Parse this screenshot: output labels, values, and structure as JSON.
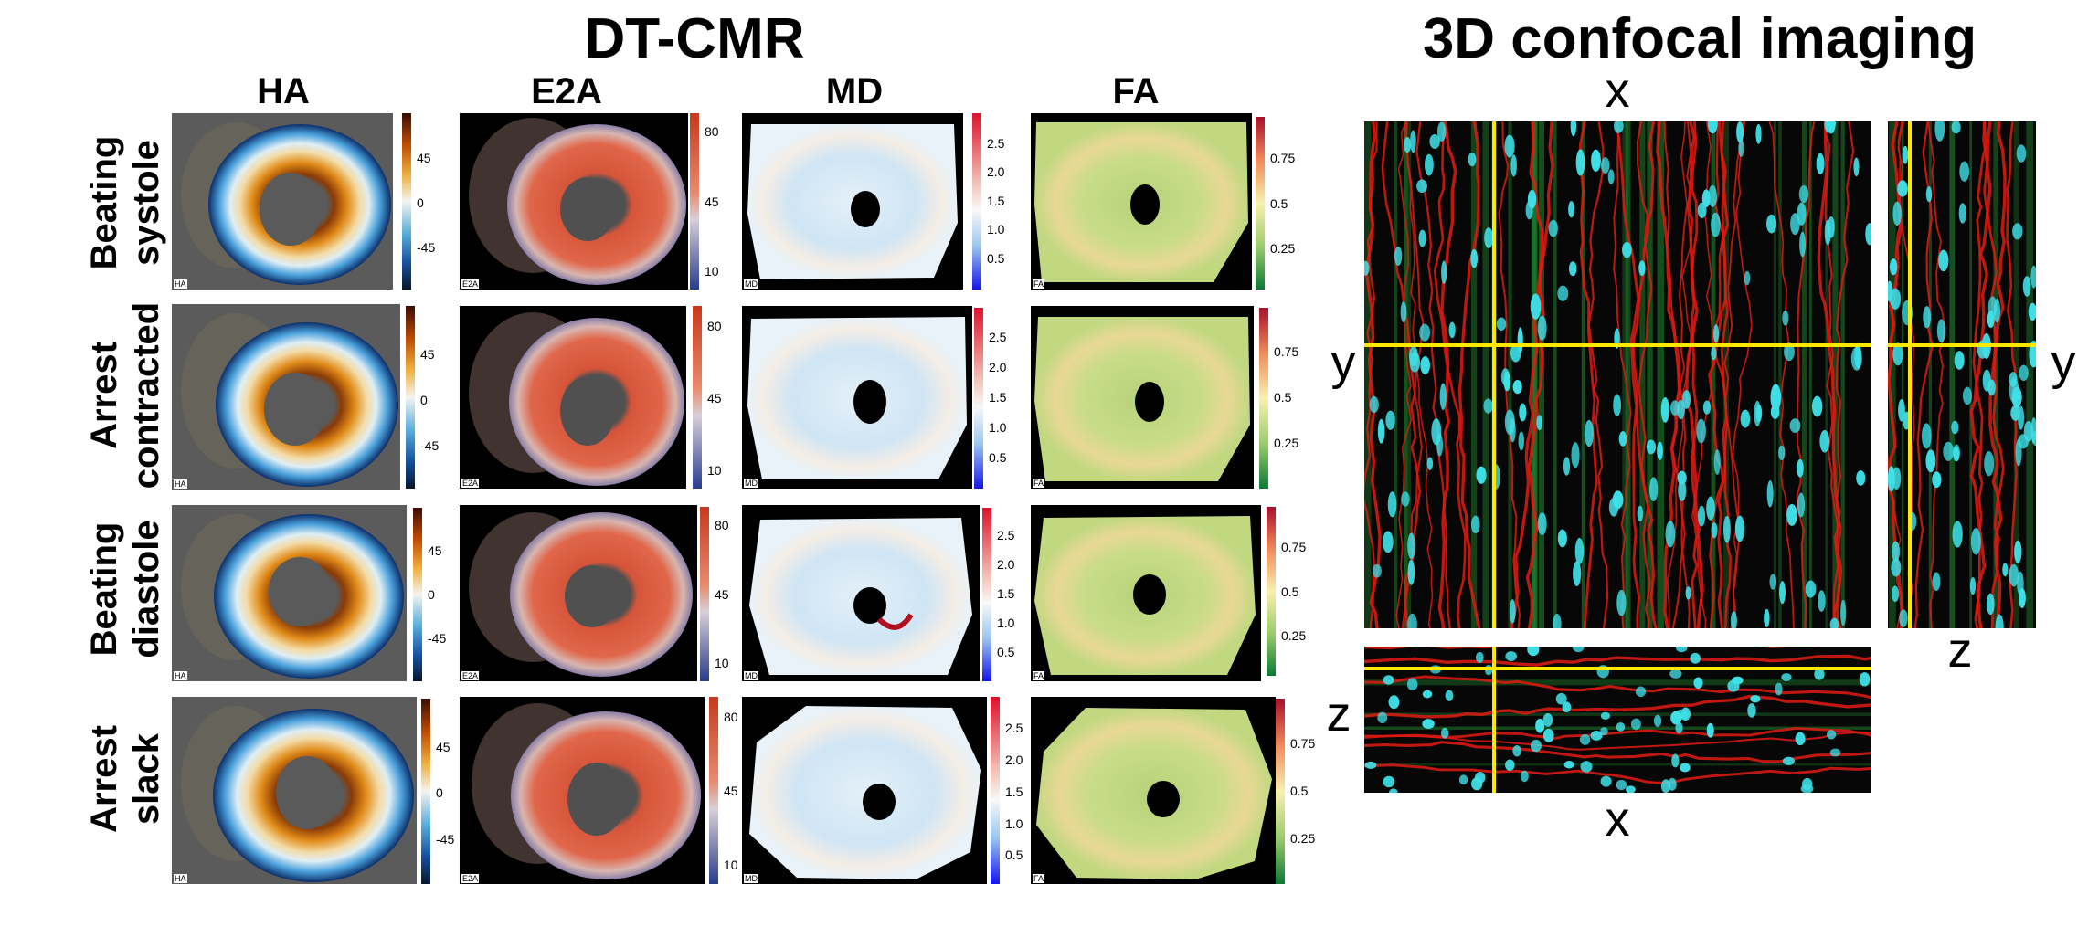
{
  "titles": {
    "dtcmr": "DT-CMR",
    "confocal": "3D confocal imaging"
  },
  "columns": [
    {
      "key": "ha",
      "header": "HA",
      "tag": "HA",
      "ticks": [
        "45",
        "0",
        "-45"
      ]
    },
    {
      "key": "e2a",
      "header": "E2A",
      "tag": "E2A",
      "ticks": [
        "80",
        "45",
        "10"
      ]
    },
    {
      "key": "md",
      "header": "MD",
      "tag": "MD",
      "ticks": [
        "2.5",
        "2.0",
        "1.5",
        "1.0",
        "0.5"
      ]
    },
    {
      "key": "fa",
      "header": "FA",
      "tag": "FA",
      "ticks": [
        "0.75",
        "0.5",
        "0.25"
      ]
    }
  ],
  "rows": [
    {
      "line1": "Beating",
      "line2": "systole"
    },
    {
      "line1": "Arrest",
      "line2": "contracted"
    },
    {
      "line1": "Beating",
      "line2": "diastole"
    },
    {
      "line1": "Arrest",
      "line2": "slack"
    }
  ],
  "confocal_axes": {
    "top_x": "x",
    "left_y": "y",
    "right_y": "y",
    "side_z": "z",
    "bottom_z": "z",
    "bottom_x": "x"
  },
  "colors": {
    "guide_line": "#ffe800",
    "membrane": "#e11a12",
    "nuclei": "#3fe0e8",
    "fibre": "#1f7a2c"
  }
}
